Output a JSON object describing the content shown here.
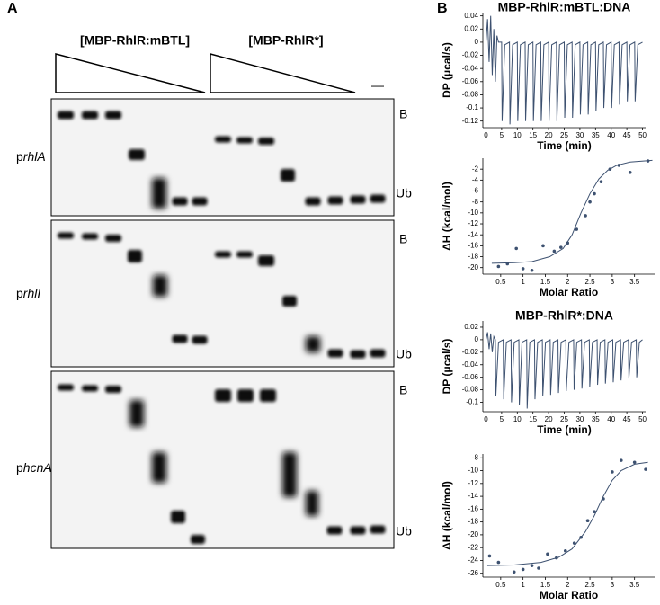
{
  "panels": [
    "A",
    "B"
  ],
  "gel": {
    "headers": [
      "[MBP-RhlR:mBTL]",
      "[MBP-RhlR*]"
    ],
    "control": "—",
    "blots": [
      {
        "prefix": "p",
        "gene": "rhlA",
        "bound": "B",
        "unbound": "Ub"
      },
      {
        "prefix": "p",
        "gene": "rhlI",
        "bound": "B",
        "unbound": "Ub"
      },
      {
        "prefix": "p",
        "gene": "hcnA",
        "bound": "B",
        "unbound": "Ub"
      }
    ]
  },
  "chart_data": [
    {
      "type": "line",
      "title": "MBP-RhlR:mBTL:DNA",
      "xlabel": "Time (min)",
      "ylabel": "DP (μcal/s)",
      "color": "#3d5170",
      "xlim": [
        -1,
        51
      ],
      "xticks": [
        0,
        5,
        10,
        15,
        20,
        25,
        30,
        35,
        40,
        45,
        50
      ],
      "ylim": [
        -0.13,
        0.045
      ],
      "yticks": [
        0.04,
        0.02,
        0,
        -0.02,
        -0.04,
        -0.06,
        -0.08,
        -0.1,
        -0.12
      ],
      "x": [
        0,
        0.5,
        1,
        1.5,
        2,
        2.5,
        3,
        3.5,
        4,
        5,
        5.15,
        6,
        7.5,
        7.65,
        8.5,
        10,
        10.15,
        11,
        12.5,
        12.65,
        13.5,
        15,
        15.15,
        16,
        17.5,
        17.65,
        18.5,
        20,
        20.15,
        21,
        22.5,
        22.65,
        23.5,
        25,
        25.15,
        26,
        27.5,
        27.65,
        28.5,
        30,
        30.15,
        31,
        32.5,
        32.65,
        33.5,
        35,
        35.15,
        36,
        37.5,
        37.65,
        38.5,
        40,
        40.15,
        41,
        42.5,
        42.65,
        43.5,
        45,
        45.15,
        46,
        47.5,
        47.65,
        48.5,
        50
      ],
      "values": [
        0,
        0.035,
        -0.03,
        0.04,
        -0.05,
        0.02,
        -0.06,
        0.01,
        0,
        0,
        -0.12,
        -0.004,
        0,
        -0.125,
        -0.004,
        0,
        -0.12,
        -0.004,
        0,
        -0.12,
        -0.004,
        0,
        -0.12,
        -0.004,
        0,
        -0.12,
        -0.004,
        0,
        -0.12,
        -0.004,
        0,
        -0.12,
        -0.004,
        0,
        -0.115,
        -0.004,
        0,
        -0.115,
        -0.004,
        0,
        -0.11,
        -0.004,
        0,
        -0.11,
        -0.004,
        0,
        -0.105,
        -0.004,
        0,
        -0.1,
        -0.004,
        0,
        -0.1,
        -0.004,
        0,
        -0.095,
        -0.004,
        0,
        -0.09,
        -0.004,
        0,
        -0.09,
        -0.004,
        0
      ]
    },
    {
      "type": "scatter",
      "xlabel": "Molar Ratio",
      "ylabel": "ΔH (kcal/mol)",
      "color": "#3d5170",
      "xlim": [
        0.1,
        3.95
      ],
      "xticks": [
        0.5,
        1,
        1.5,
        2,
        2.5,
        3,
        3.5
      ],
      "ylim": [
        -21.2,
        0
      ],
      "yticks": [
        -2,
        -4,
        -6,
        -8,
        -10,
        -12,
        -14,
        -16,
        -18,
        -20
      ],
      "x": [
        0.45,
        0.65,
        0.85,
        1.0,
        1.2,
        1.45,
        1.7,
        1.85,
        2.0,
        2.2,
        2.4,
        2.5,
        2.6,
        2.75,
        2.95,
        3.15,
        3.4,
        3.8
      ],
      "values": [
        -19.8,
        -19.3,
        -16.5,
        -20.2,
        -20.5,
        -16,
        -17,
        -16.3,
        -15.5,
        -13,
        -10.5,
        -8,
        -6.5,
        -4.3,
        -2,
        -1.3,
        -2.6,
        -0.5
      ],
      "fit": {
        "x": [
          0.3,
          0.8,
          1.2,
          1.6,
          1.9,
          2.1,
          2.3,
          2.5,
          2.7,
          2.9,
          3.1,
          3.4,
          3.9
        ],
        "values": [
          -19.2,
          -19.1,
          -18.9,
          -18,
          -16.5,
          -14,
          -10,
          -6.5,
          -3.8,
          -2.2,
          -1.3,
          -0.7,
          -0.4
        ]
      }
    },
    {
      "type": "line",
      "title": "MBP-RhlR*:DNA",
      "xlabel": "Time (min)",
      "ylabel": "DP (μcal/s)",
      "color": "#3d5170",
      "xlim": [
        -1,
        51
      ],
      "xticks": [
        0,
        5,
        10,
        15,
        20,
        25,
        30,
        35,
        40,
        45,
        50
      ],
      "ylim": [
        -0.115,
        0.03
      ],
      "yticks": [
        0.02,
        0,
        -0.02,
        -0.04,
        -0.06,
        -0.08,
        -0.1
      ],
      "x": [
        0,
        0.5,
        1,
        1.5,
        2,
        2.5,
        3,
        3.15,
        4,
        5.5,
        5.65,
        6.5,
        8,
        8.15,
        9,
        10.5,
        10.65,
        11.5,
        13,
        13.15,
        14,
        15.5,
        15.65,
        16.5,
        18,
        18.15,
        19,
        20.5,
        20.65,
        21.5,
        23,
        23.15,
        24,
        25.5,
        25.65,
        26.5,
        28,
        28.15,
        29,
        30.5,
        30.65,
        31.5,
        33,
        33.15,
        34,
        35.5,
        35.65,
        36.5,
        38,
        38.15,
        39,
        40.5,
        40.65,
        41.5,
        43,
        43.15,
        44,
        45.5,
        45.65,
        46.5,
        48,
        48.15,
        49,
        50
      ],
      "values": [
        0,
        0.012,
        -0.015,
        0.01,
        -0.02,
        0.005,
        0,
        -0.09,
        -0.004,
        0,
        -0.095,
        -0.004,
        0,
        -0.1,
        -0.004,
        0,
        -0.105,
        -0.004,
        0,
        -0.11,
        -0.004,
        0,
        -0.095,
        -0.004,
        0,
        -0.09,
        -0.004,
        0,
        -0.088,
        -0.004,
        0,
        -0.085,
        -0.004,
        0,
        -0.082,
        -0.004,
        0,
        -0.08,
        -0.004,
        0,
        -0.078,
        -0.004,
        0,
        -0.075,
        -0.004,
        0,
        -0.072,
        -0.004,
        0,
        -0.07,
        -0.004,
        0,
        -0.068,
        -0.004,
        0,
        -0.065,
        -0.004,
        0,
        -0.062,
        -0.004,
        0,
        -0.06,
        -0.004,
        0
      ]
    },
    {
      "type": "scatter",
      "xlabel": "Molar Ratio",
      "ylabel": "ΔH (kcal/mol)",
      "color": "#3d5170",
      "xlim": [
        0.1,
        3.95
      ],
      "xticks": [
        0.5,
        1,
        1.5,
        2,
        2.5,
        3,
        3.5
      ],
      "ylim": [
        -26.6,
        -7.4
      ],
      "yticks": [
        -8,
        -10,
        -12,
        -14,
        -16,
        -18,
        -20,
        -22,
        -24,
        -26
      ],
      "x": [
        0.25,
        0.45,
        0.8,
        1.0,
        1.2,
        1.35,
        1.55,
        1.75,
        1.95,
        2.15,
        2.3,
        2.45,
        2.6,
        2.8,
        3.0,
        3.2,
        3.5,
        3.75
      ],
      "values": [
        -23.3,
        -24.3,
        -25.8,
        -25.4,
        -24.8,
        -25.2,
        -23,
        -23.6,
        -22.5,
        -21.3,
        -20.4,
        -17.8,
        -16.4,
        -14.4,
        -10.2,
        -8.4,
        -8.7,
        -9.8
      ],
      "fit": {
        "x": [
          0.2,
          0.8,
          1.4,
          1.8,
          2.1,
          2.4,
          2.6,
          2.8,
          3.0,
          3.2,
          3.5,
          3.8
        ],
        "values": [
          -24.8,
          -24.7,
          -24.3,
          -23.5,
          -22.2,
          -19.5,
          -17,
          -14,
          -11.5,
          -10,
          -9,
          -8.7
        ]
      }
    }
  ]
}
